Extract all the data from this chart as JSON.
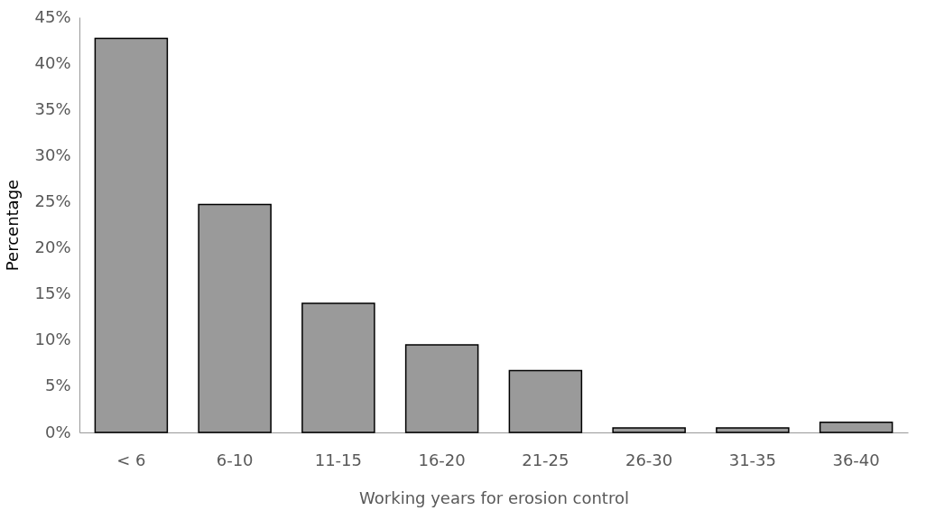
{
  "chart_data": {
    "type": "bar",
    "xlabel": "Working years for erosion control",
    "ylabel": "Percentage",
    "categories": [
      "< 6",
      "6-10",
      "11-15",
      "16-20",
      "21-25",
      "26-30",
      "31-35",
      "36-40"
    ],
    "values": [
      42.7,
      24.7,
      14.0,
      9.5,
      6.7,
      0.5,
      0.5,
      1.1
    ],
    "color": "#9a9a9a",
    "ylim": [
      0,
      45
    ],
    "yticks": [
      {
        "value": 0,
        "label": "0%"
      },
      {
        "value": 5,
        "label": "5%"
      },
      {
        "value": 10,
        "label": "10%"
      },
      {
        "value": 15,
        "label": "15%"
      },
      {
        "value": 20,
        "label": "20%"
      },
      {
        "value": 25,
        "label": "25%"
      },
      {
        "value": 30,
        "label": "30%"
      },
      {
        "value": 35,
        "label": "35%"
      },
      {
        "value": 40,
        "label": "40%"
      },
      {
        "value": 45,
        "label": "45%"
      }
    ],
    "grid": false
  }
}
